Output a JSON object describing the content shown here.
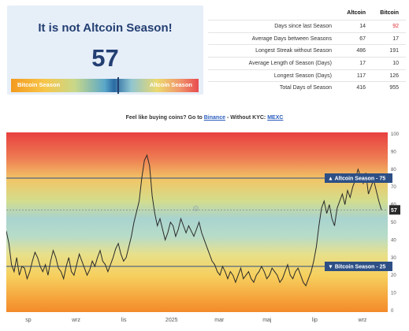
{
  "card": {
    "title": "It is not Altcoin Season!",
    "value": "57",
    "left_label": "Bitcoin Season",
    "right_label": "Altcoin Season",
    "index": 57
  },
  "table": {
    "headers": [
      "",
      "Altcoin",
      "Bitcoin"
    ],
    "rows": [
      {
        "label": "Days since last Season",
        "altcoin": "14",
        "bitcoin": "92"
      },
      {
        "label": "Average Days between Seasons",
        "altcoin": "67",
        "bitcoin": "17"
      },
      {
        "label": "Longest Streak without Season",
        "altcoin": "486",
        "bitcoin": "191"
      },
      {
        "label": "Average Length of Season (Days)",
        "altcoin": "17",
        "bitcoin": "10"
      },
      {
        "label": "Longest Season (Days)",
        "altcoin": "117",
        "bitcoin": "126"
      },
      {
        "label": "Total Days of Season",
        "altcoin": "416",
        "bitcoin": "955"
      }
    ],
    "highlight_color": "#e0262e"
  },
  "promo": {
    "prefix": "Feel like buying coins? Go to",
    "link1": "Binance",
    "middle": "- Without KYC:",
    "link2": "MEXC"
  },
  "chart_data": {
    "type": "line",
    "x_tick_labels": [
      "sp",
      "wrz",
      "lis",
      "2025",
      "mar",
      "maj",
      "lip",
      "wrz"
    ],
    "y_ticks": [
      0,
      10,
      20,
      30,
      40,
      50,
      60,
      70,
      80,
      90,
      100
    ],
    "ylim": [
      0,
      100
    ],
    "thresholds": [
      {
        "label": "▲ Altcoin Season - 75",
        "value": 75,
        "color": "#2d4f85"
      },
      {
        "label": "▼ Bitcoin Season - 25",
        "value": 25,
        "color": "#2d4f85"
      }
    ],
    "current_label": "57",
    "series": [
      {
        "values": [
          45,
          38,
          26,
          22,
          30,
          20,
          25,
          24,
          18,
          22,
          28,
          33,
          30,
          25,
          22,
          26,
          20,
          28,
          34,
          30,
          24,
          22,
          18,
          25,
          30,
          22,
          20,
          26,
          32,
          28,
          24,
          20,
          23,
          28,
          25,
          30,
          34,
          28,
          26,
          22,
          26,
          30,
          35,
          38,
          32,
          28,
          30,
          36,
          42,
          50,
          56,
          62,
          75,
          85,
          88,
          82,
          65,
          55,
          48,
          52,
          46,
          40,
          44,
          50,
          48,
          42,
          46,
          52,
          48,
          44,
          48,
          45,
          42,
          46,
          50,
          44,
          40,
          36,
          32,
          28,
          26,
          22,
          20,
          25,
          22,
          18,
          22,
          20,
          16,
          20,
          24,
          18,
          20,
          22,
          18,
          16,
          20,
          22,
          25,
          22,
          18,
          20,
          24,
          22,
          20,
          16,
          18,
          22,
          26,
          20,
          18,
          22,
          24,
          20,
          16,
          14,
          18,
          22,
          28,
          36,
          48,
          58,
          62,
          55,
          60,
          52,
          48,
          58,
          62,
          66,
          60,
          68,
          64,
          70,
          74,
          80,
          76,
          72,
          78,
          66,
          70,
          74,
          68,
          62,
          57
        ]
      }
    ],
    "grid": false
  }
}
